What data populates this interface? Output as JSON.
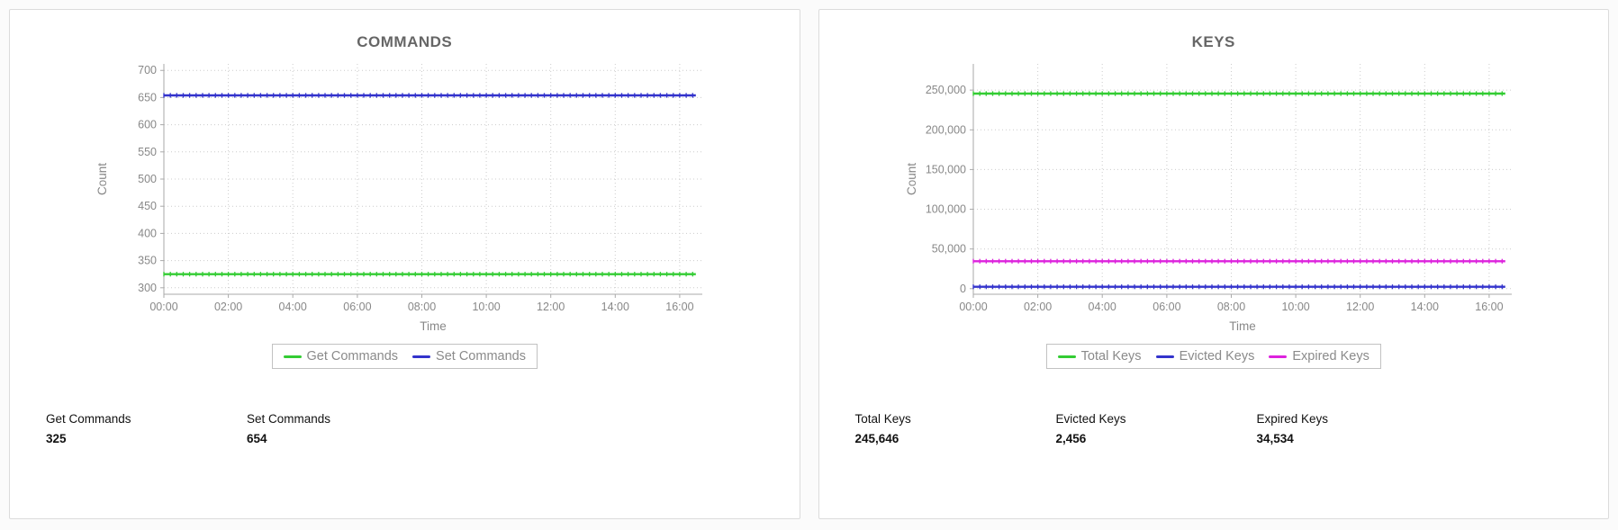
{
  "chart_data": [
    {
      "type": "line",
      "title": "COMMANDS",
      "xlabel": "Time",
      "ylabel": "Count",
      "xlim": [
        0,
        16.7
      ],
      "line_x_end": 16.5,
      "ylim": [
        288,
        712
      ],
      "grid": true,
      "legend_position": "bottom",
      "x_ticks": [
        {
          "hour": 0,
          "label": "00:00"
        },
        {
          "hour": 2,
          "label": "02:00"
        },
        {
          "hour": 4,
          "label": "04:00"
        },
        {
          "hour": 6,
          "label": "06:00"
        },
        {
          "hour": 8,
          "label": "08:00"
        },
        {
          "hour": 10,
          "label": "10:00"
        },
        {
          "hour": 12,
          "label": "12:00"
        },
        {
          "hour": 14,
          "label": "14:00"
        },
        {
          "hour": 16,
          "label": "16:00"
        }
      ],
      "y_ticks": [
        {
          "value": 300,
          "label": "300"
        },
        {
          "value": 350,
          "label": "350"
        },
        {
          "value": 400,
          "label": "400"
        },
        {
          "value": 450,
          "label": "450"
        },
        {
          "value": 500,
          "label": "500"
        },
        {
          "value": 550,
          "label": "550"
        },
        {
          "value": 600,
          "label": "600"
        },
        {
          "value": 650,
          "label": "650"
        },
        {
          "value": 700,
          "label": "700"
        }
      ],
      "series": [
        {
          "name": "Get Commands",
          "color": "#33cc33",
          "value": 325
        },
        {
          "name": "Set Commands",
          "color": "#3333cc",
          "value": 654
        }
      ]
    },
    {
      "type": "line",
      "title": "KEYS",
      "xlabel": "Time",
      "ylabel": "Count",
      "xlim": [
        0,
        16.7
      ],
      "line_x_end": 16.5,
      "ylim": [
        -7000,
        283000
      ],
      "grid": true,
      "legend_position": "bottom",
      "x_ticks": [
        {
          "hour": 0,
          "label": "00:00"
        },
        {
          "hour": 2,
          "label": "02:00"
        },
        {
          "hour": 4,
          "label": "04:00"
        },
        {
          "hour": 6,
          "label": "06:00"
        },
        {
          "hour": 8,
          "label": "08:00"
        },
        {
          "hour": 10,
          "label": "10:00"
        },
        {
          "hour": 12,
          "label": "12:00"
        },
        {
          "hour": 14,
          "label": "14:00"
        },
        {
          "hour": 16,
          "label": "16:00"
        }
      ],
      "y_ticks": [
        {
          "value": 0,
          "label": "0"
        },
        {
          "value": 50000,
          "label": "50,000"
        },
        {
          "value": 100000,
          "label": "100,000"
        },
        {
          "value": 150000,
          "label": "150,000"
        },
        {
          "value": 200000,
          "label": "200,000"
        },
        {
          "value": 250000,
          "label": "250,000"
        }
      ],
      "series": [
        {
          "name": "Total Keys",
          "color": "#33cc33",
          "value": 245646
        },
        {
          "name": "Evicted Keys",
          "color": "#3333cc",
          "value": 2456
        },
        {
          "name": "Expired Keys",
          "color": "#dd22dd",
          "value": 34534
        }
      ]
    }
  ],
  "panels": [
    {
      "stats": [
        {
          "label": "Get Commands",
          "value": "325"
        },
        {
          "label": "Set Commands",
          "value": "654"
        }
      ]
    },
    {
      "stats": [
        {
          "label": "Total Keys",
          "value": "245,646"
        },
        {
          "label": "Evicted Keys",
          "value": "2,456"
        },
        {
          "label": "Expired Keys",
          "value": "34,534"
        }
      ]
    }
  ]
}
